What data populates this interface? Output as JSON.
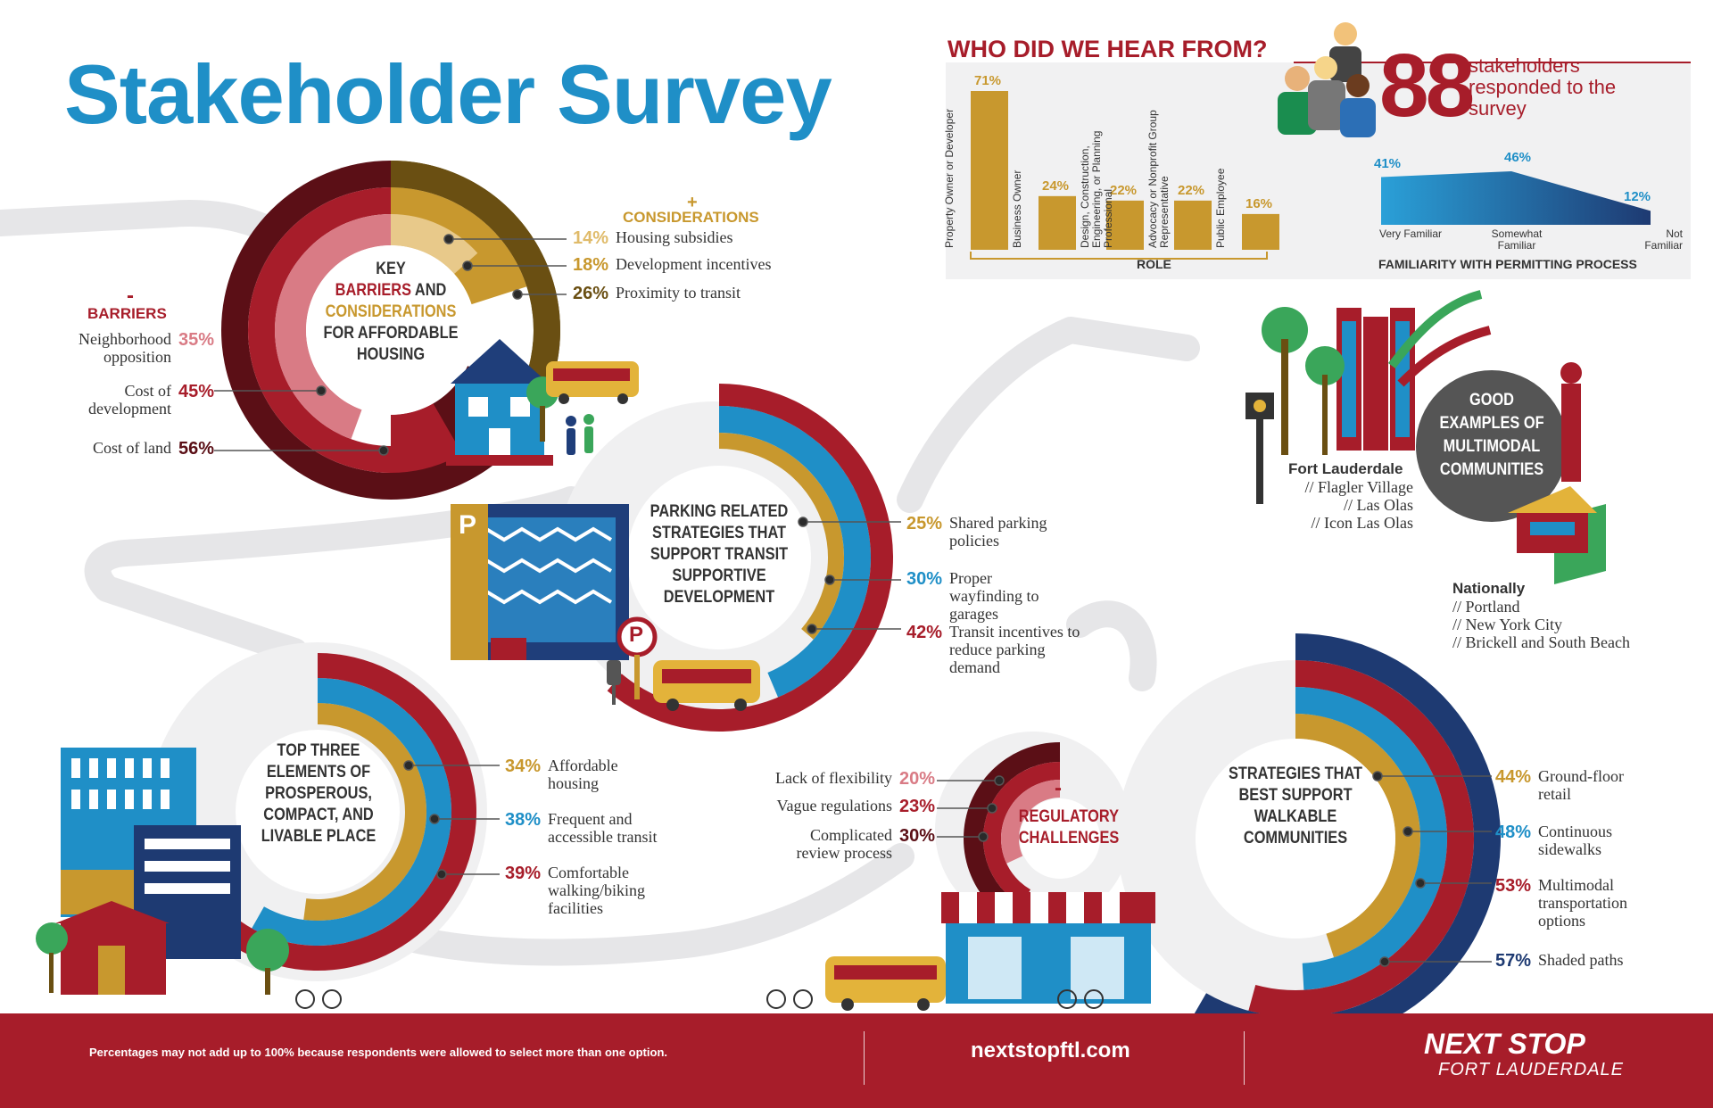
{
  "title": "Stakeholder Survey",
  "colors": {
    "blue": "#1f8fc7",
    "red": "#a71d2a",
    "gold": "#c8982e",
    "darkred": "#5b0f16",
    "brown": "#6a4f12",
    "navy": "#1e3a72"
  },
  "who": {
    "heading": "WHO DID WE HEAR FROM?",
    "count": "88",
    "count_text": "stakeholders responded to the survey",
    "role_axis": "ROLE",
    "familiarity_axis": "FAMILIARITY WITH PERMITTING PROCESS"
  },
  "roles": [
    {
      "label": "Property Owner or Developer",
      "value": 71,
      "text": "71%"
    },
    {
      "label": "Business Owner",
      "value": 24,
      "text": "24%"
    },
    {
      "label": "Design, Construction, Engineering, or Planning Professional",
      "value": 22,
      "text": "22%"
    },
    {
      "label": "Advocacy or Nonprofit Group Representative",
      "value": 22,
      "text": "22%"
    },
    {
      "label": "Public Employee",
      "value": 16,
      "text": "16%"
    }
  ],
  "familiarity": [
    {
      "label": "Very Familiar",
      "value": 41,
      "text": "41%"
    },
    {
      "label": "Somewhat Familiar",
      "value": 46,
      "text": "46%"
    },
    {
      "label": "Not Familiar",
      "value": 12,
      "text": "12%"
    }
  ],
  "housing": {
    "center": {
      "l1": "KEY",
      "l2": "BARRIERS",
      "l3": "AND",
      "l4": "CONSIDERATIONS",
      "l5": "FOR AFFORDABLE HOUSING"
    },
    "considerations_title": "CONSIDERATIONS",
    "plus": "+",
    "considerations": [
      {
        "pct": "14%",
        "value": 14,
        "label": "Housing subsidies"
      },
      {
        "pct": "18%",
        "value": 18,
        "label": "Development incentives"
      },
      {
        "pct": "26%",
        "value": 26,
        "label": "Proximity to transit"
      }
    ],
    "barriers_title": "BARRIERS",
    "minus": "-",
    "barriers": [
      {
        "pct": "35%",
        "value": 35,
        "label": "Neighborhood opposition"
      },
      {
        "pct": "45%",
        "value": 45,
        "label": "Cost of development"
      },
      {
        "pct": "56%",
        "value": 56,
        "label": "Cost of land"
      }
    ]
  },
  "parking": {
    "center": "PARKING RELATED STRATEGIES THAT SUPPORT TRANSIT SUPPORTIVE DEVELOPMENT",
    "items": [
      {
        "pct": "25%",
        "value": 25,
        "label": "Shared parking policies"
      },
      {
        "pct": "30%",
        "value": 30,
        "label": "Proper wayfinding to garages"
      },
      {
        "pct": "42%",
        "value": 42,
        "label": "Transit incentives to reduce parking demand"
      }
    ],
    "sign": "P"
  },
  "elements": {
    "center": "TOP THREE ELEMENTS OF PROSPEROUS, COMPACT, AND LIVABLE PLACE",
    "items": [
      {
        "pct": "34%",
        "value": 34,
        "label": "Affordable housing"
      },
      {
        "pct": "38%",
        "value": 38,
        "label": "Frequent and accessible transit"
      },
      {
        "pct": "39%",
        "value": 39,
        "label": "Comfortable walking/biking facilities"
      }
    ]
  },
  "regulatory": {
    "center": "REGULATORY CHALLENGES",
    "minus": "-",
    "items": [
      {
        "pct": "20%",
        "value": 20,
        "label": "Lack of flexibility"
      },
      {
        "pct": "23%",
        "value": 23,
        "label": "Vague regulations"
      },
      {
        "pct": "30%",
        "value": 30,
        "label": "Complicated review process"
      }
    ]
  },
  "walkable": {
    "center": "STRATEGIES THAT BEST SUPPORT WALKABLE COMMUNITIES",
    "items": [
      {
        "pct": "44%",
        "value": 44,
        "label": "Ground-floor retail"
      },
      {
        "pct": "48%",
        "value": 48,
        "label": "Continuous sidewalks"
      },
      {
        "pct": "53%",
        "value": 53,
        "label": "Multimodal transportation options"
      },
      {
        "pct": "57%",
        "value": 57,
        "label": "Shaded paths"
      }
    ]
  },
  "examples": {
    "center": "GOOD EXAMPLES OF MULTIMODAL COMMUNITIES",
    "local_title": "Fort Lauderdale",
    "local": [
      "// Flagler Village",
      "// Las Olas",
      "// Icon Las Olas"
    ],
    "national_title": "Nationally",
    "national": [
      "// Portland",
      "// New York City",
      "// Brickell and South Beach"
    ]
  },
  "footer": {
    "note": "Percentages may not add up to 100% because respondents were allowed to select more than one option.",
    "url": "nextstopftl.com",
    "brand1": "NEXT STOP",
    "brand2": "FORT LAUDERDALE"
  }
}
